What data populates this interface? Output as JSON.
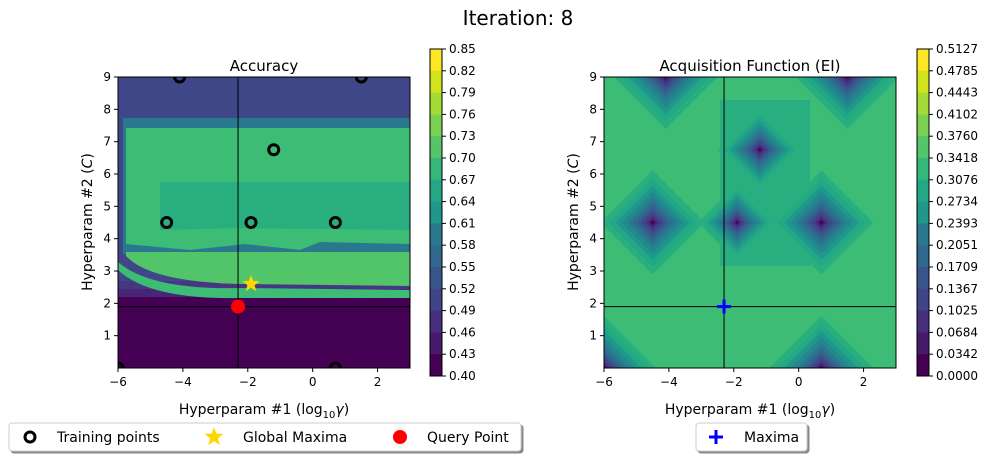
{
  "figure": {
    "suptitle": "Iteration: 8"
  },
  "chart_data": [
    {
      "type": "heatmap",
      "title": "Accuracy",
      "xlabel": "Hyperparam #1 (log",
      "xlabel_sub": "10",
      "xlabel_sym": "γ",
      "xlabel_close": ")",
      "ylabel": "Hyperparam #2 (",
      "ylabel_sym": "C",
      "ylabel_close": ")",
      "xlim": [
        -6,
        3
      ],
      "ylim": [
        0,
        9
      ],
      "xticks": [
        -6,
        -4,
        -2,
        0,
        2
      ],
      "yticks": [
        1,
        2,
        3,
        4,
        5,
        6,
        7,
        8,
        9
      ],
      "xtick_labels": [
        "−6",
        "−4",
        "−2",
        "0",
        "2"
      ],
      "ytick_labels": [
        "1",
        "2",
        "3",
        "4",
        "5",
        "6",
        "7",
        "8",
        "9"
      ],
      "colormap": "viridis",
      "colorbar_ticks": [
        "0.85",
        "0.82",
        "0.79",
        "0.76",
        "0.73",
        "0.70",
        "0.67",
        "0.64",
        "0.61",
        "0.58",
        "0.55",
        "0.52",
        "0.49",
        "0.46",
        "0.43",
        "0.40"
      ],
      "colorbar_range": [
        0.4,
        0.85
      ],
      "crosshair": {
        "x": -2.3,
        "y": 1.9
      },
      "training_points": [
        {
          "x": -4.1,
          "y": 9.0
        },
        {
          "x": 1.5,
          "y": 9.0
        },
        {
          "x": -1.2,
          "y": 6.75
        },
        {
          "x": -4.5,
          "y": 4.5
        },
        {
          "x": -1.9,
          "y": 4.5
        },
        {
          "x": 0.7,
          "y": 4.5
        },
        {
          "x": 0.7,
          "y": 0.0
        },
        {
          "x": -6.0,
          "y": 0.0
        }
      ],
      "global_maxima": {
        "x": -1.9,
        "y": 2.6
      },
      "query_point": {
        "x": -2.3,
        "y": 1.9
      },
      "colors": {
        "training": "#000000",
        "maxima": "#FFD700",
        "query": "#FF0000"
      }
    },
    {
      "type": "heatmap",
      "title": "Acquisition Function (EI)",
      "xlabel": "Hyperparam #1 (log",
      "xlabel_sub": "10",
      "xlabel_sym": "γ",
      "xlabel_close": ")",
      "ylabel": "Hyperparam #2 (",
      "ylabel_sym": "C",
      "ylabel_close": ")",
      "xlim": [
        -6,
        3
      ],
      "ylim": [
        0,
        9
      ],
      "xticks": [
        -6,
        -4,
        -2,
        0,
        2
      ],
      "yticks": [
        1,
        2,
        3,
        4,
        5,
        6,
        7,
        8,
        9
      ],
      "xtick_labels": [
        "−6",
        "−4",
        "−2",
        "0",
        "2"
      ],
      "ytick_labels": [
        "1",
        "2",
        "3",
        "4",
        "5",
        "6",
        "7",
        "8",
        "9"
      ],
      "colormap": "viridis",
      "colorbar_ticks": [
        "0.5127",
        "0.4785",
        "0.4443",
        "0.4102",
        "0.3760",
        "0.3418",
        "0.3076",
        "0.2734",
        "0.2393",
        "0.2051",
        "0.1709",
        "0.1367",
        "0.1025",
        "0.0684",
        "0.0342",
        "0.0000"
      ],
      "colorbar_range": [
        0.0,
        0.5127
      ],
      "crosshair": {
        "x": -2.3,
        "y": 1.9
      },
      "maxima": {
        "x": -2.3,
        "y": 1.9
      },
      "colors": {
        "maxima": "#0000FF"
      }
    }
  ],
  "legends": {
    "left": {
      "items": [
        {
          "label": "Training points",
          "marker": "ring-icon"
        },
        {
          "label": "Global Maxima",
          "marker": "star-icon"
        },
        {
          "label": "Query Point",
          "marker": "dot-icon"
        }
      ]
    },
    "right": {
      "items": [
        {
          "label": "Maxima",
          "marker": "plus-icon"
        }
      ]
    }
  }
}
